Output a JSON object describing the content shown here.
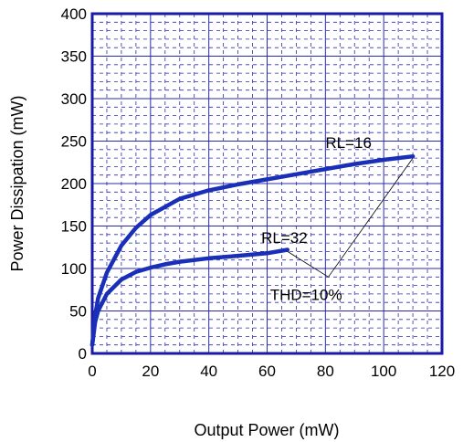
{
  "chart_data": {
    "type": "line",
    "xlabel": "Output Power (mW)",
    "ylabel": "Power Dissipation (mW)",
    "xlim": [
      0,
      120
    ],
    "ylim": [
      0,
      400
    ],
    "xticks": [
      0,
      20,
      40,
      60,
      80,
      100,
      120
    ],
    "yticks": [
      0,
      50,
      100,
      150,
      200,
      250,
      300,
      350,
      400
    ],
    "grid": true,
    "series": [
      {
        "name": "RL=16",
        "x": [
          0,
          1,
          2,
          5,
          10,
          15,
          20,
          30,
          40,
          50,
          60,
          70,
          80,
          90,
          100,
          110
        ],
        "values": [
          10,
          45,
          65,
          95,
          127,
          148,
          163,
          182,
          192,
          199,
          205,
          211,
          217,
          223,
          228,
          232
        ]
      },
      {
        "name": "RL=32",
        "x": [
          0,
          1,
          2,
          5,
          10,
          15,
          20,
          25,
          30,
          40,
          50,
          60,
          67
        ],
        "values": [
          10,
          37,
          50,
          70,
          87,
          96,
          101,
          105,
          108,
          112,
          115,
          118,
          122
        ]
      }
    ],
    "annotations": [
      {
        "text": "RL=16"
      },
      {
        "text": "RL=32"
      },
      {
        "text": "THD=10%"
      }
    ],
    "colors": {
      "line": "#1a2fb8",
      "frame": "#1a1aa8",
      "grid": "#2a2ab0",
      "text": "#000000"
    }
  }
}
